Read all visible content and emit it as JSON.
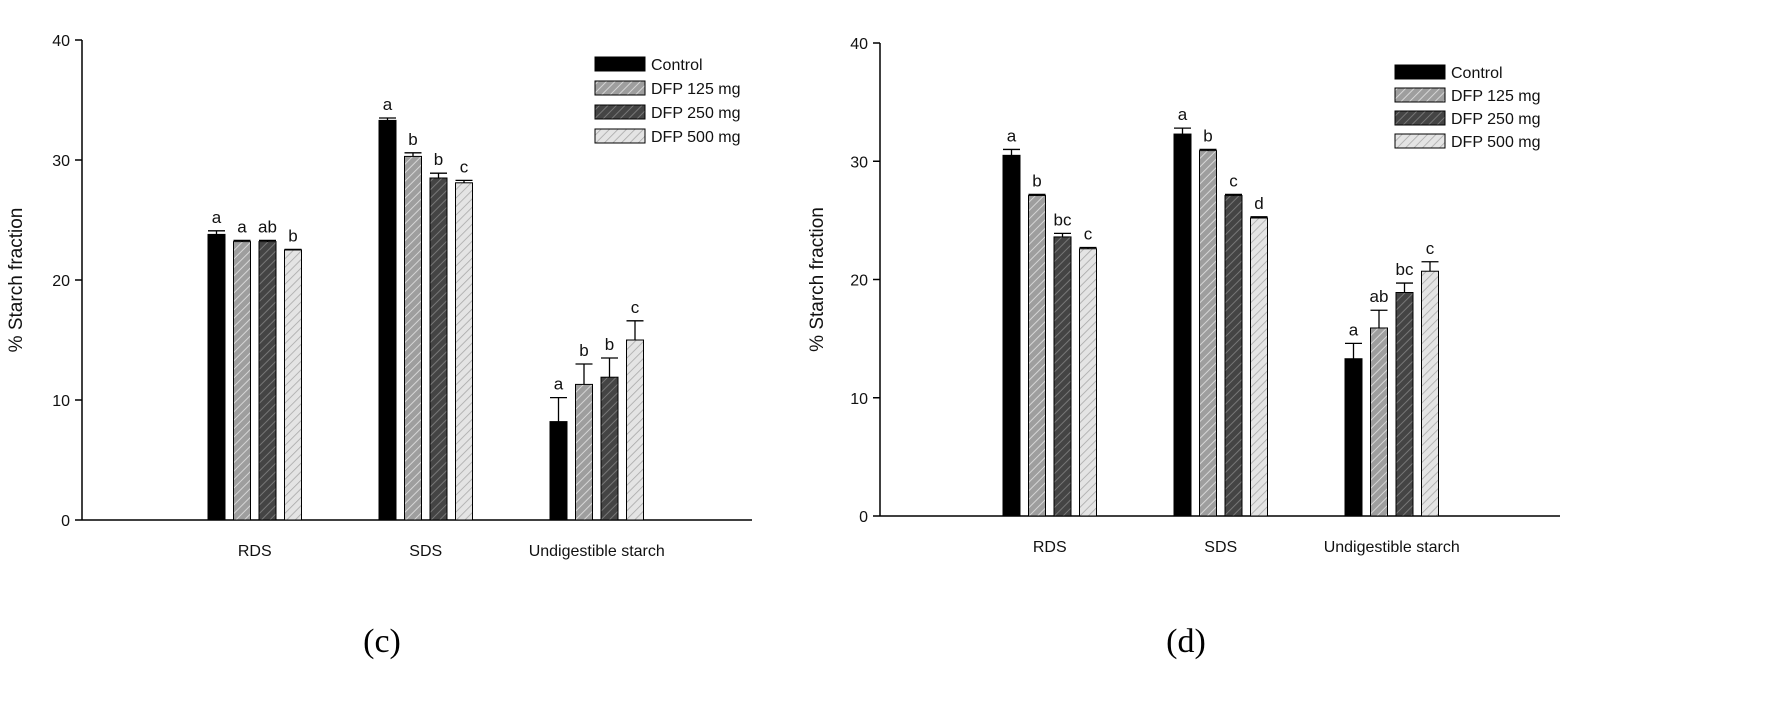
{
  "figure": {
    "panels": [
      "(c)",
      "(d)"
    ]
  },
  "chart_data": [
    {
      "type": "bar",
      "panel_label": "(c)",
      "title": "",
      "xlabel": "",
      "ylabel": "% Starch fraction",
      "ylim": [
        0,
        40
      ],
      "yticks": [
        0,
        10,
        20,
        30,
        40
      ],
      "grid": false,
      "legend_position": "top-right",
      "categories": [
        "RDS",
        "SDS",
        "Undigestible starch"
      ],
      "series": [
        {
          "name": "Control",
          "pattern": "solid-black",
          "values": [
            23.8,
            33.3,
            8.2
          ],
          "errors": [
            0.3,
            0.2,
            2.0
          ],
          "letters": [
            "a",
            "a",
            "a"
          ]
        },
        {
          "name": "DFP 125 mg",
          "pattern": "hatch-medium",
          "values": [
            23.2,
            30.3,
            11.3
          ],
          "errors": [
            0.1,
            0.3,
            1.7
          ],
          "letters": [
            "a",
            "b",
            "b"
          ]
        },
        {
          "name": "DFP 250 mg",
          "pattern": "hatch-dark",
          "values": [
            23.2,
            28.5,
            11.9
          ],
          "errors": [
            0.1,
            0.4,
            1.6
          ],
          "letters": [
            "ab",
            "b",
            "b"
          ]
        },
        {
          "name": "DFP 500 mg",
          "pattern": "hatch-light",
          "values": [
            22.5,
            28.1,
            15.0
          ],
          "errors": [
            0.05,
            0.2,
            1.6
          ],
          "letters": [
            "b",
            "c",
            "c"
          ]
        }
      ]
    },
    {
      "type": "bar",
      "panel_label": "(d)",
      "title": "",
      "xlabel": "",
      "ylabel": "% Starch fraction",
      "ylim": [
        0,
        40
      ],
      "yticks": [
        0,
        10,
        20,
        30,
        40
      ],
      "grid": false,
      "legend_position": "top-right",
      "categories": [
        "RDS",
        "SDS",
        "Undigestible starch"
      ],
      "series": [
        {
          "name": "Control",
          "pattern": "solid-black",
          "values": [
            30.5,
            32.3,
            13.3
          ],
          "errors": [
            0.5,
            0.5,
            1.3
          ],
          "letters": [
            "a",
            "a",
            "a"
          ]
        },
        {
          "name": "DFP 125 mg",
          "pattern": "hatch-medium",
          "values": [
            27.1,
            30.9,
            15.9
          ],
          "errors": [
            0.1,
            0.1,
            1.5
          ],
          "letters": [
            "b",
            "b",
            "ab"
          ]
        },
        {
          "name": "DFP 250 mg",
          "pattern": "hatch-dark",
          "values": [
            23.6,
            27.1,
            18.9
          ],
          "errors": [
            0.3,
            0.1,
            0.8
          ],
          "letters": [
            "bc",
            "c",
            "bc"
          ]
        },
        {
          "name": "DFP 500 mg",
          "pattern": "hatch-light",
          "values": [
            22.6,
            25.2,
            20.7
          ],
          "errors": [
            0.1,
            0.1,
            0.8
          ],
          "letters": [
            "c",
            "d",
            "c"
          ]
        }
      ]
    }
  ]
}
